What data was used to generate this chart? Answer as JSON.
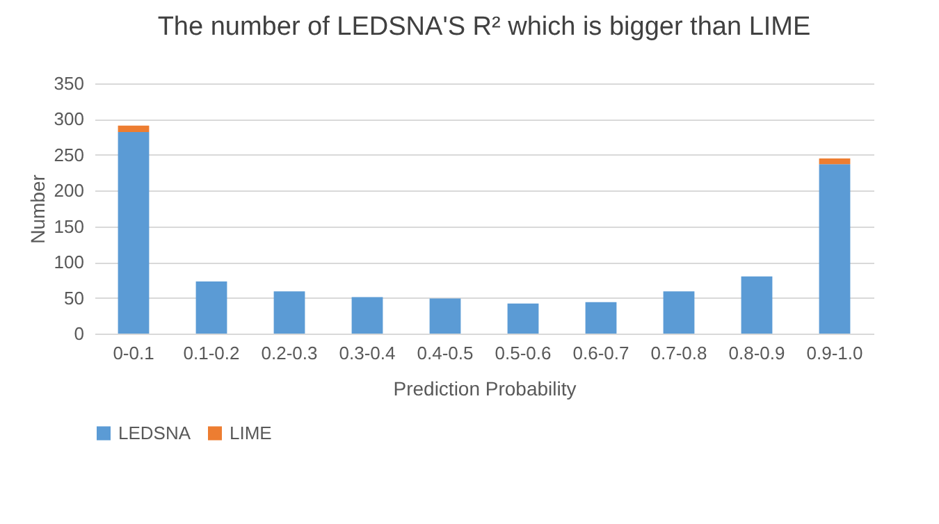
{
  "chart_data": {
    "type": "bar",
    "title": "The number of LEDSNA'S R² which is bigger than LIME",
    "xlabel": "Prediction Probability",
    "ylabel": "Number",
    "categories": [
      "0-0.1",
      "0.1-0.2",
      "0.2-0.3",
      "0.3-0.4",
      "0.4-0.5",
      "0.5-0.6",
      "0.6-0.7",
      "0.7-0.8",
      "0.8-0.9",
      "0.9-1.0"
    ],
    "series": [
      {
        "name": "LEDSNA",
        "color": "#5b9bd5",
        "values": [
          282,
          73,
          59,
          51,
          49,
          42,
          44,
          59,
          80,
          237
        ]
      },
      {
        "name": "LIME",
        "color": "#ed7d31",
        "values": [
          9,
          0,
          0,
          0,
          0,
          0,
          0,
          0,
          0,
          8
        ]
      }
    ],
    "stacked": true,
    "ylim": [
      0,
      350
    ],
    "yticks": [
      0,
      50,
      100,
      150,
      200,
      250,
      300,
      350
    ],
    "grid": "y",
    "legend": "bottom"
  }
}
